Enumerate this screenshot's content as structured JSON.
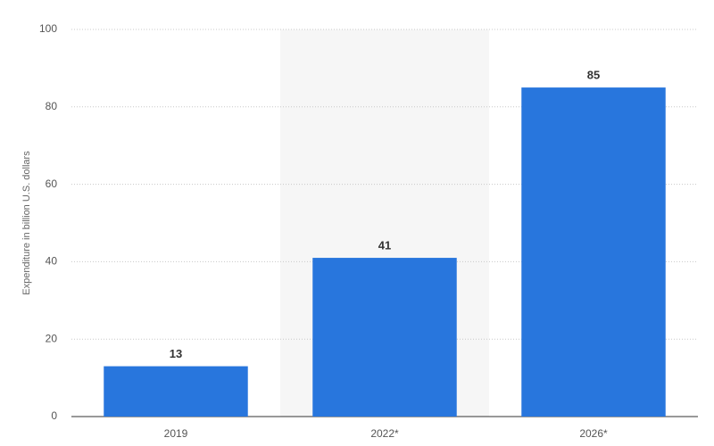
{
  "chart_data": {
    "type": "bar",
    "y_label": "Expenditure in billion U.S. dollars",
    "categories": [
      "2019",
      "2022*",
      "2026*"
    ],
    "values": [
      13,
      41,
      85
    ],
    "color": "#2876dd",
    "ylim": [
      0,
      100
    ],
    "yticks": [
      0,
      20,
      40,
      60,
      80,
      100
    ],
    "grid": true,
    "highlighted_category": 1
  }
}
